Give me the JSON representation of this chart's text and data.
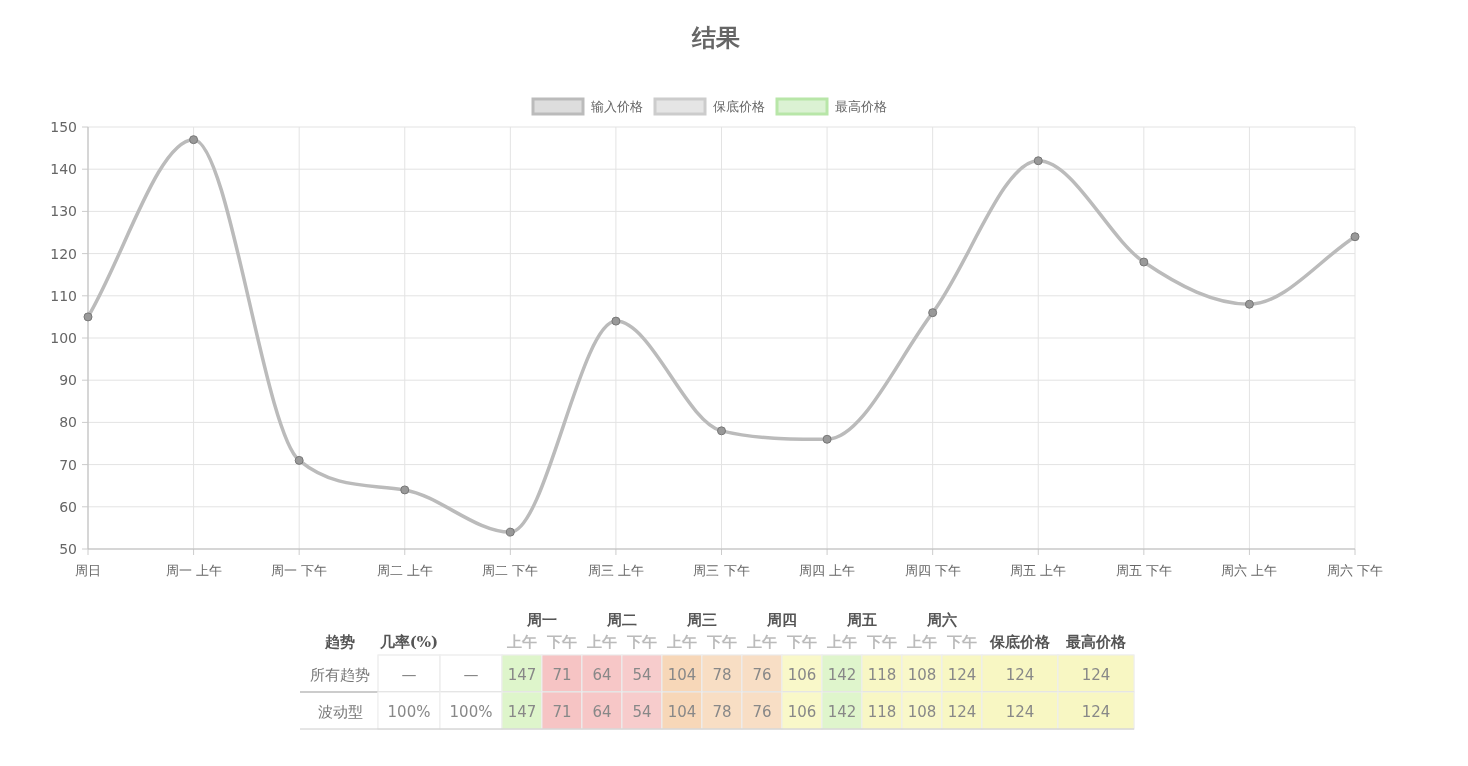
{
  "chart_data": [
    {
      "type": "line",
      "title": "结果",
      "categories": [
        "周日",
        "周一 上午",
        "周一 下午",
        "周二 上午",
        "周二 下午",
        "周三 上午",
        "周三 下午",
        "周四 上午",
        "周四 下午",
        "周五 上午",
        "周五 下午",
        "周六 上午",
        "周六 下午"
      ],
      "series": [
        {
          "name": "输入价格",
          "color": "#bbbbbb",
          "values": [
            105,
            147,
            71,
            64,
            54,
            104,
            78,
            76,
            106,
            142,
            118,
            108,
            124
          ]
        },
        {
          "name": "保底价格",
          "color": "#cccccc",
          "values": [
            null,
            null,
            null,
            null,
            null,
            null,
            null,
            null,
            null,
            null,
            null,
            null,
            null
          ]
        },
        {
          "name": "最高价格",
          "color": "#b8e6a8",
          "values": [
            null,
            null,
            null,
            null,
            null,
            null,
            null,
            null,
            null,
            null,
            null,
            null,
            null
          ]
        }
      ],
      "ylim": [
        50,
        150
      ],
      "yticks": [
        50,
        60,
        70,
        80,
        90,
        100,
        110,
        120,
        130,
        140,
        150
      ],
      "grid": true,
      "legend": "top",
      "marker": "circle",
      "line_style": "solid"
    },
    {
      "type": "heatmap",
      "ylabel": "趋势",
      "annotations": [
        "周一",
        "周二",
        "周三",
        "周四",
        "周五",
        "周六"
      ],
      "categories": [
        "几率(%)",
        null,
        "上午",
        "下午",
        "上午",
        "下午",
        "上午",
        "下午",
        "上午",
        "下午",
        "上午",
        "下午",
        "上午",
        "下午",
        "保底价格",
        "最高价格"
      ],
      "y_categories": [
        "所有趋势",
        "波动型"
      ],
      "cells": [
        [
          null,
          null,
          147,
          71,
          64,
          54,
          104,
          78,
          76,
          106,
          142,
          118,
          108,
          124,
          124,
          124
        ],
        [
          100,
          100,
          147,
          71,
          64,
          54,
          104,
          78,
          76,
          106,
          142,
          118,
          108,
          124,
          124,
          124
        ]
      ],
      "cell_labels": [
        [
          "—",
          "—",
          "147",
          "71",
          "64",
          "54",
          "104",
          "78",
          "76",
          "106",
          "142",
          "118",
          "108",
          "124",
          "124",
          "124"
        ],
        [
          "100%",
          "100%",
          "147",
          "71",
          "64",
          "54",
          "104",
          "78",
          "76",
          "106",
          "142",
          "118",
          "108",
          "124",
          "124",
          "124"
        ]
      ],
      "colors": [
        [
          "#ffffff",
          "#ffffff",
          "#def5cb",
          "#f1a2a2",
          "#f1a2a2",
          "#f1a2a2",
          "#f5cda6",
          "#f5cda6",
          "#f5cda6",
          "#f7f6bc",
          "#def5cb",
          "#f7f6bc",
          "#f7f6bc",
          "#f7f6bc",
          "#f7f6bc",
          "#f7f6bc"
        ],
        [
          "#ffffff",
          "#ffffff",
          "#def5cb",
          "#f1a2a2",
          "#f1a2a2",
          "#f1a2a2",
          "#f5cda6",
          "#f5cda6",
          "#f5cda6",
          "#f7f6bc",
          "#def5cb",
          "#f7f6bc",
          "#f7f6bc",
          "#f7f6bc",
          "#f7f6bc",
          "#f7f6bc"
        ]
      ]
    }
  ]
}
